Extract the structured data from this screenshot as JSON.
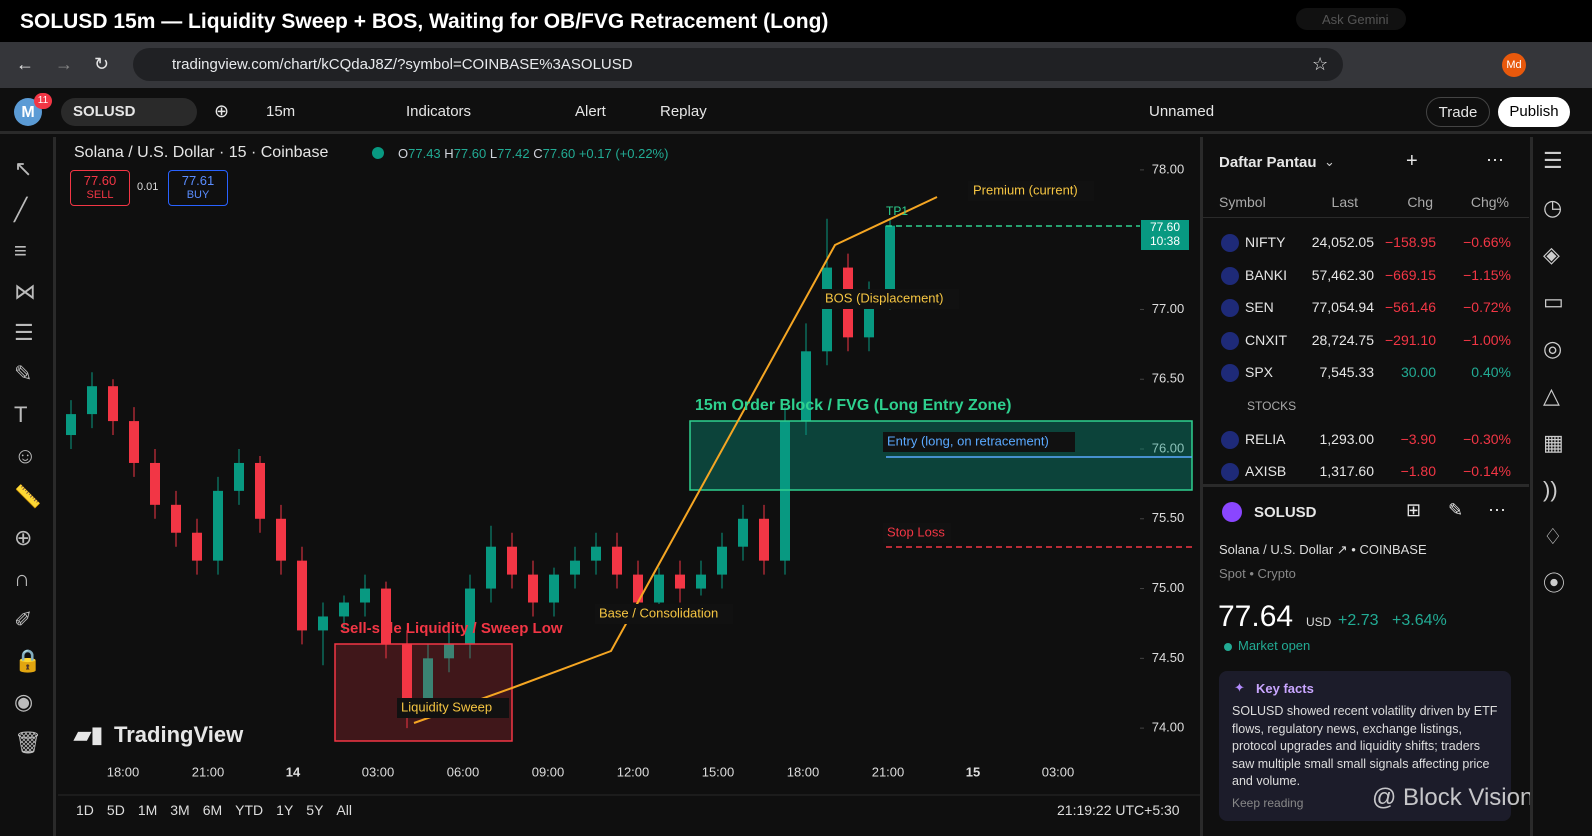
{
  "window": {
    "title": "SOLUSD 15m — Liquidity Sweep + BOS, Waiting for OB/FVG Retracement (Long)",
    "ask": "Ask Gemini"
  },
  "browser": {
    "url": "tradingview.com/chart/kCQdaJ8Z/?symbol=COINBASE%3ASOLUSD",
    "profile": "Md"
  },
  "toolbar": {
    "badge": "11",
    "symbol": "SOLUSD",
    "interval": "15m",
    "indicators": "Indicators",
    "alert": "Alert",
    "replay": "Replay",
    "layout": "Unnamed",
    "trade": "Trade",
    "publish": "Publish"
  },
  "chart_data": {
    "type": "candlestick",
    "legend": {
      "title": "Solana / U.S. Dollar · 15 · Coinbase",
      "o": "O",
      "open": "77.43",
      "h": "H",
      "high": "77.60",
      "l": "L",
      "low": "77.42",
      "c": "C",
      "close": "77.60",
      "change": "+0.17 (+0.22%)"
    },
    "sell": {
      "price": "77.60",
      "label": "SELL"
    },
    "spread": "0.01",
    "buy": {
      "price": "77.61",
      "label": "BUY"
    },
    "up_color": "#089981",
    "down_color": "#f23645",
    "ylim": [
      73.75,
      78.25
    ],
    "yticks": [
      {
        "value": 74,
        "label": "74.00"
      },
      {
        "value": 74.5,
        "label": "74.50"
      },
      {
        "value": 75,
        "label": "75.00"
      },
      {
        "value": 75.5,
        "label": "75.50"
      },
      {
        "value": 76,
        "label": "76.00"
      },
      {
        "value": 76.5,
        "label": "76.50"
      },
      {
        "value": 77,
        "label": "77.00"
      },
      {
        "value": 78,
        "label": "78.00"
      }
    ],
    "x_labels": [
      "18:00",
      "21:00",
      "14",
      "03:00",
      "06:00",
      "09:00",
      "12:00",
      "15:00",
      "18:00",
      "21:00",
      "15",
      "03:00"
    ],
    "current": {
      "price": "77.60",
      "countdown": "10:38"
    },
    "open": [
      76.1,
      76.25,
      76.45,
      76.2,
      75.9,
      75.6,
      75.4,
      75.2,
      75.7,
      75.9,
      75.5,
      75.2,
      74.7,
      74.8,
      74.9,
      75.0,
      74.6,
      74.2,
      74.5,
      74.6,
      75.0,
      75.3,
      75.1,
      74.9,
      75.1,
      75.2,
      75.3,
      75.1,
      74.9,
      75.1,
      75.0,
      75.1,
      75.3,
      75.5,
      75.2,
      76.2,
      76.7,
      77.3,
      76.8,
      77.1
    ],
    "high": [
      76.35,
      76.55,
      76.5,
      76.3,
      76.0,
      75.7,
      75.5,
      75.8,
      76.0,
      75.95,
      75.6,
      75.3,
      74.9,
      74.95,
      75.1,
      75.05,
      74.7,
      74.6,
      74.7,
      75.1,
      75.45,
      75.4,
      75.2,
      75.15,
      75.3,
      75.4,
      75.4,
      75.2,
      75.15,
      75.2,
      75.2,
      75.4,
      75.6,
      75.6,
      76.3,
      76.9,
      77.65,
      77.4,
      77.2,
      77.65
    ],
    "low": [
      76.0,
      76.15,
      76.1,
      75.8,
      75.5,
      75.3,
      75.1,
      75.1,
      75.6,
      75.4,
      75.1,
      74.6,
      74.45,
      74.7,
      74.8,
      74.5,
      74.0,
      74.1,
      74.4,
      74.5,
      74.9,
      75.0,
      74.8,
      74.8,
      75.0,
      75.1,
      75.0,
      74.8,
      74.85,
      74.9,
      74.95,
      75.0,
      75.2,
      75.1,
      75.1,
      76.1,
      76.6,
      76.7,
      76.7,
      77.0
    ],
    "close": [
      76.25,
      76.45,
      76.2,
      75.9,
      75.6,
      75.4,
      75.2,
      75.7,
      75.9,
      75.5,
      75.2,
      74.7,
      74.8,
      74.9,
      75.0,
      74.6,
      74.2,
      74.5,
      74.6,
      75.0,
      75.3,
      75.1,
      74.9,
      75.1,
      75.2,
      75.3,
      75.1,
      74.9,
      75.1,
      75.0,
      75.1,
      75.3,
      75.5,
      75.2,
      76.2,
      76.7,
      77.3,
      76.8,
      77.1,
      77.6
    ],
    "annotations": {
      "premium": "Premium (current)",
      "tp1": "TP1",
      "bos": "BOS (Displacement)",
      "zone": "15m Order Block / FVG (Long Entry Zone)",
      "entry": "Entry (long, on retracement)",
      "stop": "Stop Loss",
      "base": "Base / Consolidation",
      "sellside": "Sell-side Liquidity / Sweep Low",
      "sweep": "Liquidity Sweep"
    },
    "logo": "TradingView"
  },
  "bottom_bar": {
    "ranges": [
      "1D",
      "5D",
      "1M",
      "3M",
      "6M",
      "YTD",
      "1Y",
      "5Y",
      "All"
    ],
    "time": "21:19:22 UTC+5:30"
  },
  "watchlist": {
    "title": "Daftar Pantau",
    "headers": [
      "Symbol",
      "Last",
      "Chg",
      "Chg%"
    ],
    "section": "STOCKS",
    "rows": [
      [
        "NIFTY",
        "24,052.05",
        "−158.95",
        "−0.66%"
      ],
      [
        "BANKI",
        "57,462.30",
        "−669.15",
        "−1.15%"
      ],
      [
        "SEN",
        "77,054.94",
        "−561.46",
        "−0.72%"
      ],
      [
        "CNXIT",
        "28,724.75",
        "−291.10",
        "−1.00%"
      ],
      [
        "SPX",
        "7,545.33",
        "30.00",
        "0.40%"
      ],
      [
        "RELIA",
        "1,293.00",
        "−3.90",
        "−0.30%"
      ],
      [
        "AXISB",
        "1,317.60",
        "−1.80",
        "−0.14%"
      ]
    ]
  },
  "details": {
    "symbol": "SOLUSD",
    "name": "Solana / U.S. Dollar",
    "exchange": "COINBASE",
    "kind": "Spot",
    "category": "Crypto",
    "price": "77.64",
    "currency": "USD",
    "change": "+2.73",
    "change_pct": "+3.64%",
    "status": "Market open",
    "facts_title": "Key facts",
    "facts": "SOLUSD showed recent volatility driven by ETF flows, regulatory news, exchange listings, protocol upgrades and liquidity shifts; traders saw multiple small small signals affecting price and volume.",
    "more": "Keep reading"
  },
  "watermark": "@ Block Vision"
}
